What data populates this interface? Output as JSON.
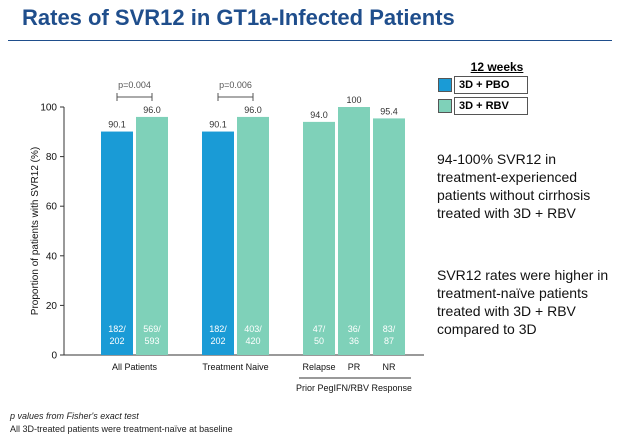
{
  "title": "Rates of SVR12 in GT1a-Infected Patients",
  "legend": {
    "title": "12 weeks",
    "items": [
      {
        "label": "3D + PBO",
        "color": "#1a9bd6"
      },
      {
        "label": "3D + RBV",
        "color": "#7fd1b9"
      }
    ]
  },
  "bullets": [
    "94-100% SVR12 in treatment-experienced patients without cirrhosis treated with 3D + RBV",
    "SVR12 rates were higher in treatment-naïve patients treated with 3D + RBV compared to 3D"
  ],
  "footnotes": [
    "p values from Fisher's exact test",
    "All 3D-treated patients were treatment-naïve at baseline"
  ],
  "chart_data": {
    "type": "bar",
    "ylabel": "Proportion of patients with SVR12 (%)",
    "ylim": [
      0,
      100
    ],
    "yticks": [
      0,
      20,
      40,
      60,
      80,
      100
    ],
    "group_axis_label": "Prior PegIFN/RBV Response",
    "groups": [
      {
        "label": "All Patients",
        "pvalue": "p=0.004",
        "bars": [
          {
            "series": "3D + PBO",
            "value": 90.1,
            "value_label": "90.1",
            "n_top": "182/",
            "n_bottom": "202"
          },
          {
            "series": "3D + RBV",
            "value": 96.0,
            "value_label": "96.0",
            "n_top": "569/",
            "n_bottom": "593"
          }
        ]
      },
      {
        "label": "Treatment Naive",
        "pvalue": "p=0.006",
        "bars": [
          {
            "series": "3D + PBO",
            "value": 90.1,
            "value_label": "90.1",
            "n_top": "182/",
            "n_bottom": "202"
          },
          {
            "series": "3D + RBV",
            "value": 96.0,
            "value_label": "96.0",
            "n_top": "403/",
            "n_bottom": "420"
          }
        ]
      },
      {
        "label": "",
        "pvalue": "",
        "bars": [
          {
            "series": "3D + RBV",
            "value": 94.0,
            "value_label": "94.0",
            "n_top": "47/",
            "n_bottom": "50",
            "label": "Relapse"
          },
          {
            "series": "3D + RBV",
            "value": 100,
            "value_label": "100",
            "n_top": "36/",
            "n_bottom": "36",
            "label": "PR"
          },
          {
            "series": "3D + RBV",
            "value": 95.4,
            "value_label": "95.4",
            "n_top": "83/",
            "n_bottom": "87",
            "label": "NR"
          }
        ]
      }
    ]
  }
}
